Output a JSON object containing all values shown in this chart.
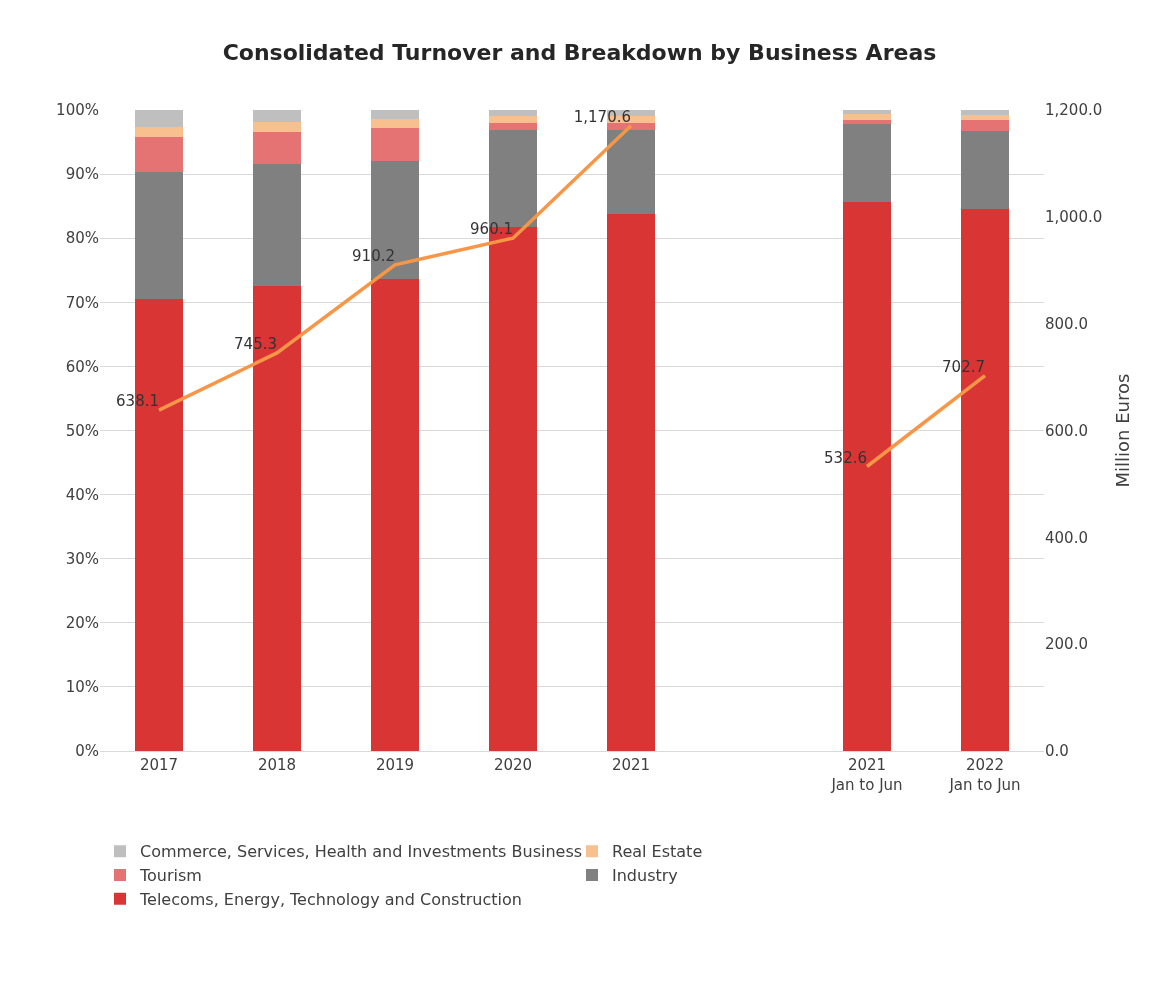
{
  "chart_data": {
    "type": "bar",
    "title": "Consolidated Turnover and Breakdown by Business Areas",
    "y2label": "Million Euros",
    "categories": [
      "2017",
      "2018",
      "2019",
      "2020",
      "2021",
      null,
      "2021\nJan to Jun",
      "2022\nJan to Jun"
    ],
    "stacked": true,
    "grid": "y",
    "legend": "bottom",
    "ylim": [
      0,
      100
    ],
    "yticks": [
      {
        "value": 0,
        "label": "0%"
      },
      {
        "value": 10,
        "label": "10%"
      },
      {
        "value": 20,
        "label": "20%"
      },
      {
        "value": 30,
        "label": "30%"
      },
      {
        "value": 40,
        "label": "40%"
      },
      {
        "value": 50,
        "label": "50%"
      },
      {
        "value": 60,
        "label": "60%"
      },
      {
        "value": 70,
        "label": "70%"
      },
      {
        "value": 80,
        "label": "80%"
      },
      {
        "value": 90,
        "label": "90%"
      },
      {
        "value": 100,
        "label": "100%"
      }
    ],
    "y2lim": [
      0,
      1200
    ],
    "y2ticks": [
      {
        "value": 0,
        "label": "0.0"
      },
      {
        "value": 200,
        "label": "200.0"
      },
      {
        "value": 400,
        "label": "400.0"
      },
      {
        "value": 600,
        "label": "600.0"
      },
      {
        "value": 800,
        "label": "800.0"
      },
      {
        "value": 1000,
        "label": "1,000.0"
      },
      {
        "value": 1200,
        "label": "1,200.0"
      }
    ],
    "series": [
      {
        "name": "Telecoms, Energy, Technology and Construction",
        "color": "#d93535",
        "values": [
          70.5,
          72.5,
          73.6,
          81.8,
          83.8,
          null,
          85.7,
          84.5
        ]
      },
      {
        "name": "Industry",
        "color": "#808080",
        "values": [
          19.8,
          19.0,
          18.4,
          15.1,
          13.1,
          null,
          12.1,
          12.2
        ]
      },
      {
        "name": "Tourism",
        "color": "#e57373",
        "values": [
          5.5,
          5.0,
          5.2,
          1.1,
          1.0,
          null,
          0.7,
          1.7
        ]
      },
      {
        "name": "Real Estate",
        "color": "#f9c08f",
        "values": [
          1.5,
          1.6,
          1.4,
          1.1,
          1.2,
          null,
          0.9,
          0.8
        ]
      },
      {
        "name": "Commerce, Services, Health and Investments Business",
        "color": "#bfbfbf",
        "values": [
          2.7,
          1.9,
          1.4,
          0.9,
          0.9,
          null,
          0.6,
          0.8
        ]
      },
      {
        "type": "line",
        "axis": "y2",
        "color": "#f79646",
        "marker": "none",
        "values": [
          638.1,
          745.3,
          910.2,
          960.1,
          1170.6,
          null,
          532.6,
          702.7
        ],
        "value_labels": [
          "638.1",
          "745.3",
          "910.2",
          "960.1",
          "1,170.6",
          null,
          "532.6",
          "702.7"
        ]
      }
    ]
  }
}
